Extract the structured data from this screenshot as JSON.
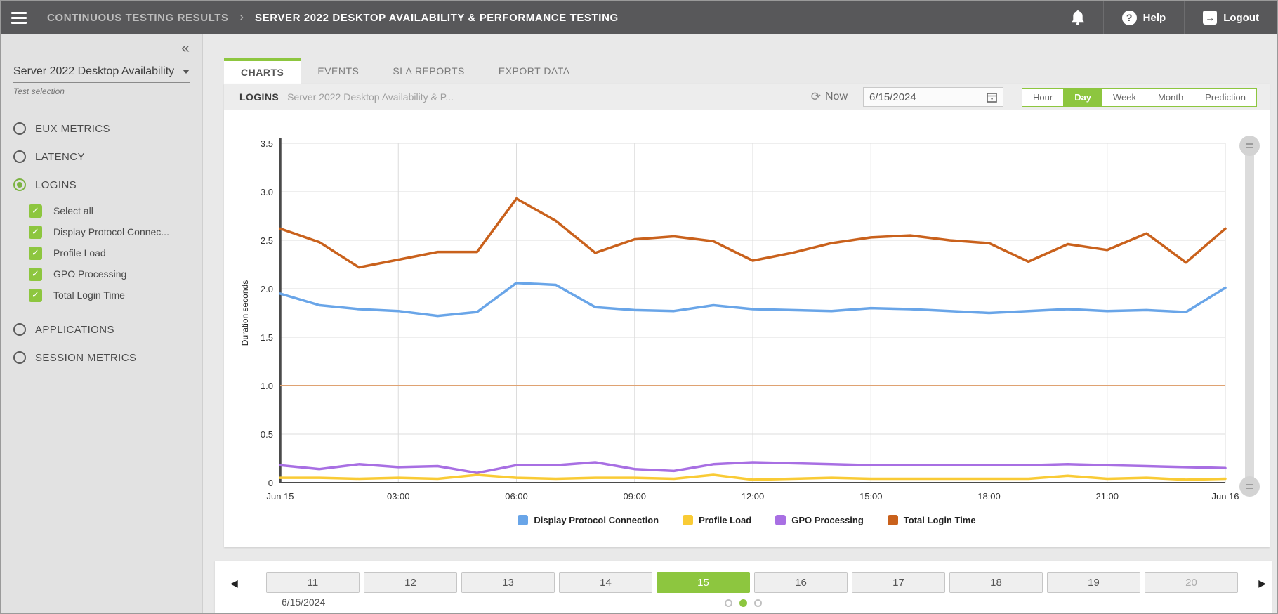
{
  "topbar": {
    "breadcrumb_1": "CONTINUOUS TESTING RESULTS",
    "breadcrumb_sep": "›",
    "breadcrumb_2": "SERVER 2022 DESKTOP AVAILABILITY & PERFORMANCE TESTING",
    "help_icon_glyph": "?",
    "help_label": "Help",
    "logout_icon_glyph": "→",
    "logout_label": "Logout"
  },
  "sidebar": {
    "collapse_glyph": "«",
    "test_dropdown_value": "Server 2022 Desktop Availability ...",
    "test_caption": "Test selection",
    "sections": [
      {
        "label": "EUX METRICS",
        "selected": false
      },
      {
        "label": "LATENCY",
        "selected": false
      },
      {
        "label": "LOGINS",
        "selected": true
      },
      {
        "label": "APPLICATIONS",
        "selected": false
      },
      {
        "label": "SESSION METRICS",
        "selected": false
      }
    ],
    "metrics": [
      "Select all",
      "Display Protocol Connec...",
      "Profile Load",
      "GPO Processing",
      "Total Login Time"
    ],
    "check_glyph": "✓"
  },
  "tabs": {
    "items": [
      "CHARTS",
      "EVENTS",
      "SLA REPORTS",
      "EXPORT DATA"
    ],
    "active": "CHARTS"
  },
  "chart_header": {
    "title": "LOGINS",
    "subtitle": "Server 2022 Desktop Availability & P...",
    "now_label": "Now",
    "refresh_glyph": "⟳",
    "date_value": "6/15/2024",
    "ranges": [
      "Hour",
      "Day",
      "Week",
      "Month",
      "Prediction"
    ],
    "active_range": "Day"
  },
  "chart_data": {
    "type": "line",
    "ylabel": "Duration seconds",
    "ylim": [
      0,
      3.5
    ],
    "y_ticks": [
      "0",
      "0.5",
      "1.0",
      "1.5",
      "2.0",
      "2.5",
      "3.0",
      "3.5"
    ],
    "x_ticks": [
      {
        "label": "Jun 15",
        "hour": 0
      },
      {
        "label": "03:00",
        "hour": 3
      },
      {
        "label": "06:00",
        "hour": 6
      },
      {
        "label": "09:00",
        "hour": 9
      },
      {
        "label": "12:00",
        "hour": 12
      },
      {
        "label": "15:00",
        "hour": 15
      },
      {
        "label": "18:00",
        "hour": 18
      },
      {
        "label": "21:00",
        "hour": 21
      },
      {
        "label": "Jun 16",
        "hour": 24
      }
    ],
    "xlim_hours": [
      0,
      24
    ],
    "grid": true,
    "legend_position": "bottom",
    "threshold_line": {
      "value": 1.0,
      "color": "#DFA272"
    },
    "series": [
      {
        "name": "Display Protocol Connection",
        "color": "#69A5E8",
        "values": [
          1.95,
          1.83,
          1.79,
          1.77,
          1.72,
          1.76,
          2.06,
          2.04,
          1.81,
          1.78,
          1.77,
          1.83,
          1.79,
          1.78,
          1.77,
          1.8,
          1.79,
          1.77,
          1.75,
          1.77,
          1.79,
          1.77,
          1.78,
          1.76,
          2.01
        ]
      },
      {
        "name": "Profile Load",
        "color": "#F9CB35",
        "values": [
          0.05,
          0.05,
          0.04,
          0.05,
          0.04,
          0.08,
          0.05,
          0.04,
          0.05,
          0.05,
          0.04,
          0.08,
          0.03,
          0.04,
          0.05,
          0.04,
          0.04,
          0.04,
          0.04,
          0.04,
          0.07,
          0.04,
          0.05,
          0.03,
          0.04
        ]
      },
      {
        "name": "GPO Processing",
        "color": "#A86FE3",
        "values": [
          0.18,
          0.14,
          0.19,
          0.16,
          0.17,
          0.1,
          0.18,
          0.18,
          0.21,
          0.14,
          0.12,
          0.19,
          0.21,
          0.2,
          0.19,
          0.18,
          0.18,
          0.18,
          0.18,
          0.18,
          0.19,
          0.18,
          0.17,
          0.16,
          0.15
        ]
      },
      {
        "name": "Total Login Time",
        "color": "#C9611C",
        "values": [
          2.62,
          2.48,
          2.22,
          2.3,
          2.38,
          2.38,
          2.93,
          2.7,
          2.37,
          2.51,
          2.54,
          2.49,
          2.29,
          2.37,
          2.47,
          2.53,
          2.55,
          2.5,
          2.47,
          2.28,
          2.46,
          2.4,
          2.57,
          2.27,
          2.62
        ]
      }
    ]
  },
  "bottom_bar": {
    "prev_glyph": "◀",
    "next_glyph": "▶",
    "days": [
      "11",
      "12",
      "13",
      "14",
      "15",
      "16",
      "17",
      "18",
      "19",
      "20"
    ],
    "active_day": "15",
    "faded_days": [
      "20"
    ],
    "date_label": "6/15/2024",
    "dots": {
      "count": 3,
      "active_index": 1
    }
  },
  "colors": {
    "accent_green": "#8DC63F",
    "topbar_bg": "#58585A",
    "sidebar_bg": "#E2E2E2"
  }
}
